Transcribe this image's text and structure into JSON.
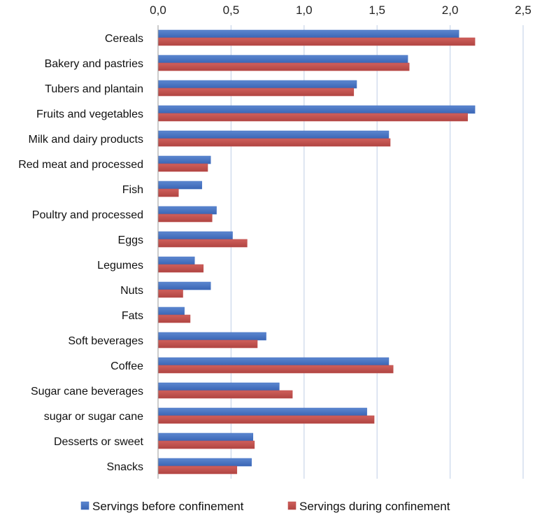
{
  "chart_data": {
    "type": "bar",
    "orientation": "horizontal",
    "title": "",
    "xlabel": "",
    "ylabel": "",
    "xlim": [
      0,
      2.5
    ],
    "xticks": [
      "0,0",
      "0,5",
      "1,0",
      "1,5",
      "2,0",
      "2,5"
    ],
    "grid": true,
    "legend_position": "bottom",
    "categories": [
      "Cereals",
      "Bakery and pastries",
      "Tubers and plantain",
      "Fruits and vegetables",
      "Milk and dairy products",
      "Red meat and processed",
      "Fish",
      "Poultry and processed",
      "Eggs",
      "Legumes",
      "Nuts",
      "Fats",
      "Soft beverages",
      "Coffee",
      "Sugar cane beverages",
      "sugar or sugar cane",
      "Desserts or sweet",
      "Snacks"
    ],
    "series": [
      {
        "name": "Servings before confinement",
        "color": "#4472C4",
        "values": [
          2.06,
          1.71,
          1.36,
          2.17,
          1.58,
          0.36,
          0.3,
          0.4,
          0.51,
          0.25,
          0.36,
          0.18,
          0.74,
          1.58,
          0.83,
          1.43,
          0.65,
          0.64
        ]
      },
      {
        "name": "Servings during confinement",
        "color": "#C0504D",
        "values": [
          2.17,
          1.72,
          1.34,
          2.12,
          1.59,
          0.34,
          0.14,
          0.37,
          0.61,
          0.31,
          0.17,
          0.22,
          0.68,
          1.61,
          0.92,
          1.48,
          0.66,
          0.54
        ]
      }
    ]
  }
}
